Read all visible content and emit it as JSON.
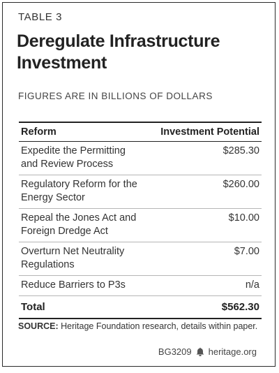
{
  "header": {
    "table_number": "TABLE 3",
    "title": "Deregulate Infrastructure Investment",
    "units_note": "FIGURES ARE IN BILLIONS OF DOLLARS"
  },
  "chart_data": {
    "type": "table",
    "columns": [
      "Reform",
      "Investment Potential"
    ],
    "rows": [
      {
        "reform": "Expedite the Permitting and Review Process",
        "value": "$285.30"
      },
      {
        "reform": "Regulatory Reform for the Energy Sector",
        "value": "$260.00"
      },
      {
        "reform": "Repeal the Jones Act and Foreign Dredge Act",
        "value": "$10.00"
      },
      {
        "reform": "Overturn Net Neutrality Regulations",
        "value": "$7.00"
      },
      {
        "reform": "Reduce Barriers to P3s",
        "value": "n/a"
      }
    ],
    "total": {
      "label": "Total",
      "value": "$562.30"
    }
  },
  "source": {
    "label": "SOURCE:",
    "text": "Heritage Foundation research, details within paper."
  },
  "footer": {
    "report_id": "BG3209",
    "logo_icon": "bell-icon",
    "site": "heritage.org"
  }
}
